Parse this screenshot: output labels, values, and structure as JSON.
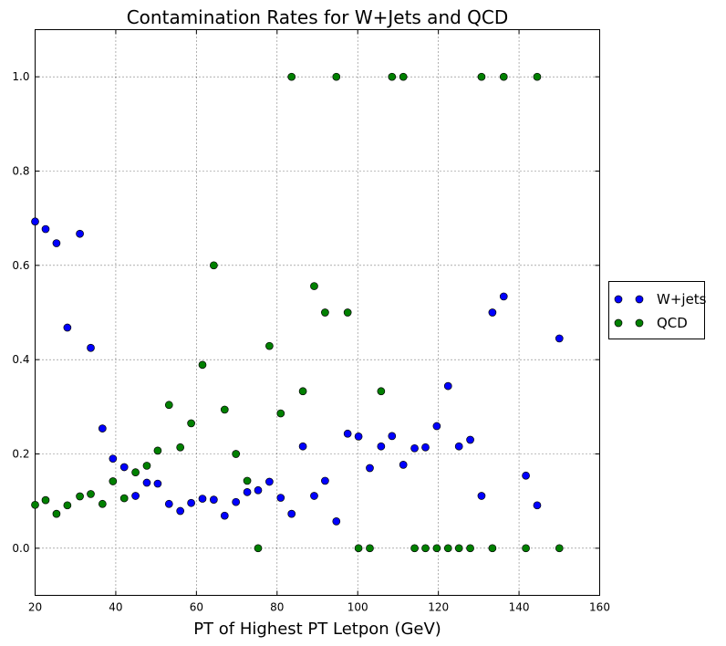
{
  "chart_data": {
    "type": "scatter",
    "title": "Contamination Rates for W+Jets and QCD",
    "xlabel": "PT of Highest PT Letpon (GeV)",
    "ylabel": "",
    "xlim": [
      20,
      160
    ],
    "ylim": [
      -0.1,
      1.1
    ],
    "xticks": [
      20,
      40,
      60,
      80,
      100,
      120,
      140,
      160
    ],
    "yticks": [
      0.0,
      0.2,
      0.4,
      0.6,
      0.8,
      1.0
    ],
    "xtick_labels": [
      "20",
      "40",
      "60",
      "80",
      "100",
      "120",
      "140",
      "160"
    ],
    "ytick_labels": [
      "0.0",
      "0.2",
      "0.4",
      "0.6",
      "0.8",
      "1.0"
    ],
    "grid": true,
    "legend_position": "outside-right",
    "series": [
      {
        "name": "W+jets",
        "color": "#0000ff",
        "points": [
          [
            20.0,
            0.693
          ],
          [
            22.6,
            0.677
          ],
          [
            25.3,
            0.647
          ],
          [
            28.0,
            0.468
          ],
          [
            31.1,
            0.667
          ],
          [
            33.8,
            0.425
          ],
          [
            36.7,
            0.254
          ],
          [
            39.3,
            0.19
          ],
          [
            42.1,
            0.172
          ],
          [
            44.9,
            0.111
          ],
          [
            47.7,
            0.139
          ],
          [
            50.4,
            0.137
          ],
          [
            53.2,
            0.094
          ],
          [
            56.0,
            0.079
          ],
          [
            58.7,
            0.096
          ],
          [
            61.5,
            0.105
          ],
          [
            64.3,
            0.103
          ],
          [
            67.0,
            0.069
          ],
          [
            69.8,
            0.098
          ],
          [
            72.6,
            0.119
          ],
          [
            75.3,
            0.123
          ],
          [
            78.1,
            0.141
          ],
          [
            80.9,
            0.107
          ],
          [
            83.6,
            0.073
          ],
          [
            86.4,
            0.216
          ],
          [
            89.2,
            0.111
          ],
          [
            91.9,
            0.143
          ],
          [
            94.7,
            0.057
          ],
          [
            97.5,
            0.243
          ],
          [
            100.2,
            0.237
          ],
          [
            103.0,
            0.17
          ],
          [
            105.8,
            0.216
          ],
          [
            108.5,
            0.238
          ],
          [
            111.3,
            0.177
          ],
          [
            114.1,
            0.212
          ],
          [
            116.8,
            0.214
          ],
          [
            119.6,
            0.259
          ],
          [
            122.4,
            0.344
          ],
          [
            125.1,
            0.216
          ],
          [
            127.9,
            0.23
          ],
          [
            130.7,
            0.111
          ],
          [
            133.4,
            0.5
          ],
          [
            136.2,
            0.534
          ],
          [
            141.7,
            0.154
          ],
          [
            144.5,
            0.091
          ],
          [
            150.0,
            0.445
          ]
        ]
      },
      {
        "name": "QCD",
        "color": "#008000",
        "points": [
          [
            20.0,
            0.092
          ],
          [
            22.6,
            0.102
          ],
          [
            25.3,
            0.073
          ],
          [
            28.0,
            0.091
          ],
          [
            31.1,
            0.11
          ],
          [
            33.8,
            0.115
          ],
          [
            36.7,
            0.094
          ],
          [
            39.3,
            0.142
          ],
          [
            42.1,
            0.106
          ],
          [
            44.9,
            0.161
          ],
          [
            47.7,
            0.175
          ],
          [
            50.4,
            0.207
          ],
          [
            53.2,
            0.304
          ],
          [
            56.0,
            0.214
          ],
          [
            58.7,
            0.265
          ],
          [
            61.5,
            0.389
          ],
          [
            64.3,
            0.6
          ],
          [
            67.0,
            0.294
          ],
          [
            69.8,
            0.2
          ],
          [
            72.6,
            0.143
          ],
          [
            75.3,
            0.0
          ],
          [
            78.1,
            0.429
          ],
          [
            80.9,
            0.286
          ],
          [
            83.6,
            1.0
          ],
          [
            86.4,
            0.333
          ],
          [
            89.2,
            0.556
          ],
          [
            91.9,
            0.5
          ],
          [
            94.7,
            1.0
          ],
          [
            97.5,
            0.5
          ],
          [
            100.2,
            0.0
          ],
          [
            103.0,
            0.0
          ],
          [
            105.8,
            0.333
          ],
          [
            108.5,
            1.0
          ],
          [
            111.3,
            1.0
          ],
          [
            114.1,
            0.0
          ],
          [
            116.8,
            0.0
          ],
          [
            119.6,
            0.0
          ],
          [
            122.4,
            0.0
          ],
          [
            125.1,
            0.0
          ],
          [
            127.9,
            0.0
          ],
          [
            130.7,
            1.0
          ],
          [
            133.4,
            0.0
          ],
          [
            136.2,
            1.0
          ],
          [
            141.7,
            0.0
          ],
          [
            144.5,
            1.0
          ],
          [
            150.0,
            0.0
          ]
        ]
      }
    ]
  }
}
